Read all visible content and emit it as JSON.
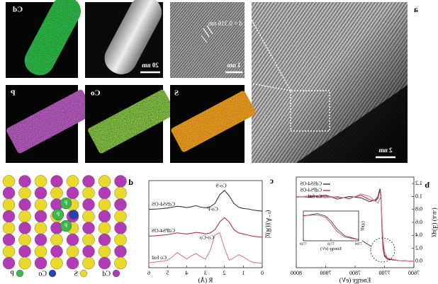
{
  "panel_labels": [
    "a",
    "b",
    "c",
    "d"
  ],
  "images": {
    "maps": [
      "Cd",
      "P",
      "Co",
      "S"
    ],
    "scale_bars": [
      "20 nm",
      "1 nm",
      "2 nm"
    ],
    "lattice_spacing": "d = 0.316 nm"
  },
  "structure_legend": [
    "P",
    "Co",
    "S",
    "Cd"
  ],
  "chart_data": [
    {
      "type": "line",
      "xlabel": "Energy (eV)",
      "ylabel": "χμ(E) (a.u.)",
      "x": [
        7600,
        7650,
        7690,
        7700,
        7705,
        7708,
        7710,
        7712,
        7715,
        7718,
        7722,
        7730,
        7750,
        7780,
        7820,
        7860,
        7900,
        7950,
        8000
      ],
      "xlim": [
        7600,
        8000
      ],
      "xticks": [
        7600,
        7700,
        7800,
        7900,
        8000
      ],
      "ylim": [
        -0.1,
        1.3
      ],
      "yticks": [
        {
          "value": 0,
          "label": "0.0"
        },
        {
          "value": 0.2,
          "label": "0.2"
        },
        {
          "value": 0.4,
          "label": "0.4"
        },
        {
          "value": 0.6,
          "label": "0.6"
        },
        {
          "value": 0.8,
          "label": "0.8"
        },
        {
          "value": 1,
          "label": "1.0"
        },
        {
          "value": 1.2,
          "label": "1.2"
        }
      ],
      "legend": "upper right",
      "series": [
        {
          "name": "CdSS4-OS",
          "color": "#333333",
          "values": [
            0,
            0.01,
            0.03,
            0.08,
            0.2,
            0.45,
            0.75,
            1.0,
            1.12,
            1.08,
            1.0,
            0.95,
            0.92,
            0.98,
            1.0,
            0.96,
            1.02,
            0.99,
            1.0
          ]
        },
        {
          "name": "CdPS4-OS",
          "color": "#c0304a",
          "values": [
            0,
            0.01,
            0.04,
            0.1,
            0.25,
            0.5,
            0.8,
            1.02,
            1.1,
            1.05,
            0.97,
            0.93,
            0.95,
            1.02,
            0.97,
            0.99,
            1.0,
            1.01,
            0.99
          ]
        },
        {
          "name": "Co foil",
          "color": "#e07a90",
          "values": [
            0,
            0.01,
            0.05,
            0.15,
            0.35,
            0.6,
            0.82,
            0.95,
            0.98,
            0.94,
            0.9,
            0.92,
            1.0,
            1.04,
            0.96,
            1.0,
            0.98,
            1.0,
            1.0
          ]
        }
      ],
      "inset": {
        "type": "line",
        "xlabel": "Energy (eV)",
        "ylabel": "χμ(E)",
        "x": [
          7700,
          7705,
          7708,
          7710,
          7712,
          7715,
          7720
        ],
        "xlim": [
          7700,
          7720
        ],
        "xticks": [
          7700,
          7710,
          7720
        ],
        "ylim": [
          0,
          1.2
        ],
        "series": [
          {
            "color": "#333333",
            "values": [
              0.05,
              0.2,
              0.5,
              0.8,
              1.0,
              1.1,
              1.0
            ]
          },
          {
            "color": "#c0304a",
            "values": [
              0.05,
              0.15,
              0.4,
              0.7,
              0.95,
              1.05,
              1.02
            ]
          }
        ]
      }
    },
    {
      "type": "line",
      "xlabel": "R (Å)",
      "ylabel": "|χ(R)|(Å⁻³)",
      "x": [
        0,
        0.25,
        0.5,
        0.75,
        1,
        1.25,
        1.5,
        1.75,
        2,
        2.25,
        2.5,
        2.75,
        3,
        3.25,
        3.5,
        3.75,
        4,
        4.25,
        4.5,
        4.75,
        5,
        5.25,
        5.5,
        5.75,
        6
      ],
      "xlim": [
        0,
        6
      ],
      "xticks": [
        0,
        1,
        2,
        3,
        4,
        5,
        6
      ],
      "ylim": [
        0,
        4
      ],
      "annotations": [
        "Co-S",
        "Co-P",
        "Co-Co"
      ],
      "series": [
        {
          "name": "CdSS4-OS",
          "color": "#333333",
          "values": [
            2.6,
            2.62,
            2.65,
            2.7,
            2.72,
            2.78,
            2.95,
            3.3,
            3.55,
            3.35,
            2.95,
            2.8,
            2.75,
            2.78,
            2.85,
            2.8,
            2.76,
            2.8,
            2.82,
            2.78,
            2.74,
            2.72,
            2.7,
            2.69,
            2.68
          ]
        },
        {
          "name": "CdPS4-OS",
          "color": "#c0304a",
          "values": [
            1.4,
            1.42,
            1.45,
            1.5,
            1.55,
            1.6,
            1.75,
            2.1,
            2.3,
            2.1,
            1.75,
            1.6,
            1.55,
            1.6,
            1.62,
            1.58,
            1.55,
            1.57,
            1.6,
            1.56,
            1.52,
            1.5,
            1.48,
            1.46,
            1.45
          ]
        },
        {
          "name": "Co foil",
          "color": "#e07a90",
          "values": [
            0.2,
            0.22,
            0.25,
            0.35,
            0.5,
            0.6,
            0.45,
            0.35,
            0.9,
            1.6,
            1.5,
            0.8,
            0.4,
            0.5,
            0.65,
            0.55,
            0.4,
            0.55,
            0.7,
            0.5,
            0.35,
            0.3,
            0.28,
            0.25,
            0.22
          ]
        }
      ]
    }
  ]
}
